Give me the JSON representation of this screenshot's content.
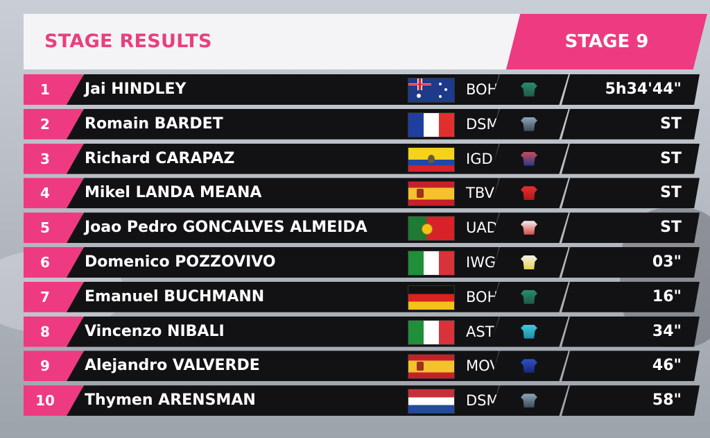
{
  "header": {
    "title": "STAGE RESULTS",
    "stage": "STAGE 9"
  },
  "colors": {
    "accent_pink": "#ee3a80",
    "row_bg": "#121214"
  },
  "results": [
    {
      "pos": "1",
      "name": "Jai HINDLEY",
      "flag": "Australia",
      "team": "BOH",
      "jersey": "boh-jersey-icon",
      "time": "5h34'44\""
    },
    {
      "pos": "2",
      "name": "Romain BARDET",
      "flag": "France",
      "team": "DSM",
      "jersey": "dsm-jersey-icon",
      "time": "ST"
    },
    {
      "pos": "3",
      "name": "Richard CARAPAZ",
      "flag": "Ecuador",
      "team": "IGD",
      "jersey": "igd-jersey-icon",
      "time": "ST"
    },
    {
      "pos": "4",
      "name": "Mikel LANDA MEANA",
      "flag": "Spain",
      "team": "TBV",
      "jersey": "tbv-jersey-icon",
      "time": "ST"
    },
    {
      "pos": "5",
      "name": "Joao Pedro GONCALVES ALMEIDA",
      "flag": "Portugal",
      "team": "UAD",
      "jersey": "uad-jersey-icon",
      "time": "ST"
    },
    {
      "pos": "6",
      "name": "Domenico POZZOVIVO",
      "flag": "Italy",
      "team": "IWG",
      "jersey": "iwg-jersey-icon",
      "time": "03\""
    },
    {
      "pos": "7",
      "name": "Emanuel BUCHMANN",
      "flag": "Germany",
      "team": "BOH",
      "jersey": "boh-jersey-icon",
      "time": "16\""
    },
    {
      "pos": "8",
      "name": "Vincenzo NIBALI",
      "flag": "Italy",
      "team": "AST",
      "jersey": "ast-jersey-icon",
      "time": "34\""
    },
    {
      "pos": "9",
      "name": "Alejandro VALVERDE",
      "flag": "Spain",
      "team": "MOV",
      "jersey": "mov-jersey-icon",
      "time": "46\""
    },
    {
      "pos": "10",
      "name": "Thymen ARENSMAN",
      "flag": "Netherlands",
      "team": "DSM",
      "jersey": "dsm-jersey-icon",
      "time": "58\""
    }
  ]
}
